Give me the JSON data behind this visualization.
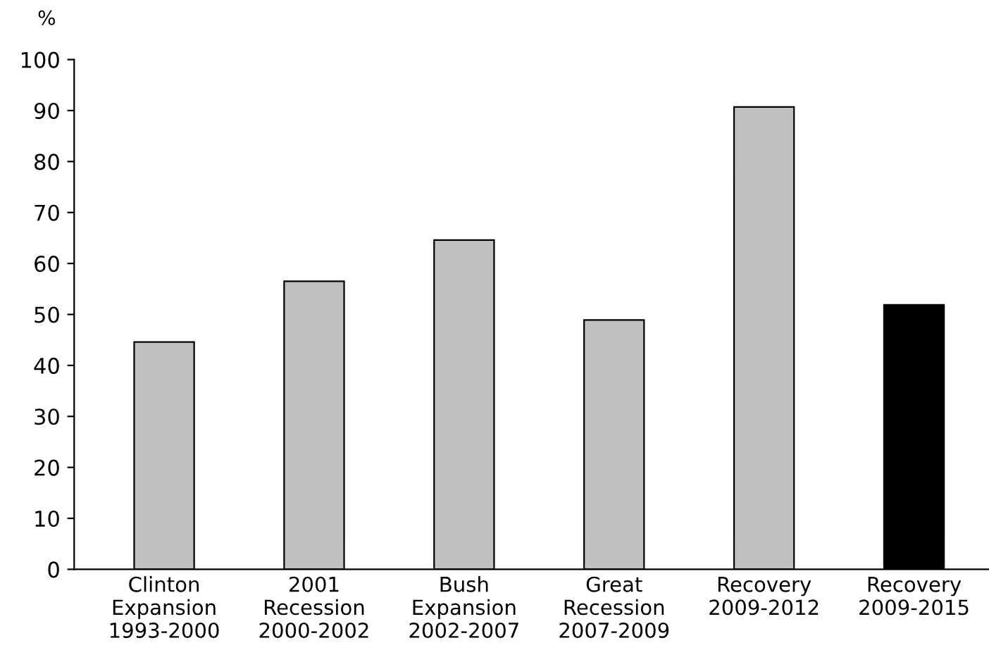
{
  "chart_data": {
    "type": "bar",
    "ylabel": "%",
    "categories": [
      "Clinton\nExpansion\n1993-2000",
      "2001\nRecession\n2000-2002",
      "Bush\nExpansion\n2002-2007",
      "Great\nRecession\n2007-2009",
      "Recovery\n2009-2012",
      "Recovery\n2009-2015"
    ],
    "values": [
      44.6,
      56.5,
      64.6,
      48.9,
      90.7,
      51.9
    ],
    "colors": [
      "#c0c0c0",
      "#c0c0c0",
      "#c0c0c0",
      "#c0c0c0",
      "#c0c0c0",
      "#000000"
    ],
    "ylim": [
      0,
      100
    ],
    "yticks": [
      0,
      10,
      20,
      30,
      40,
      50,
      60,
      70,
      80,
      90,
      100
    ],
    "grid": false,
    "legend": false
  }
}
